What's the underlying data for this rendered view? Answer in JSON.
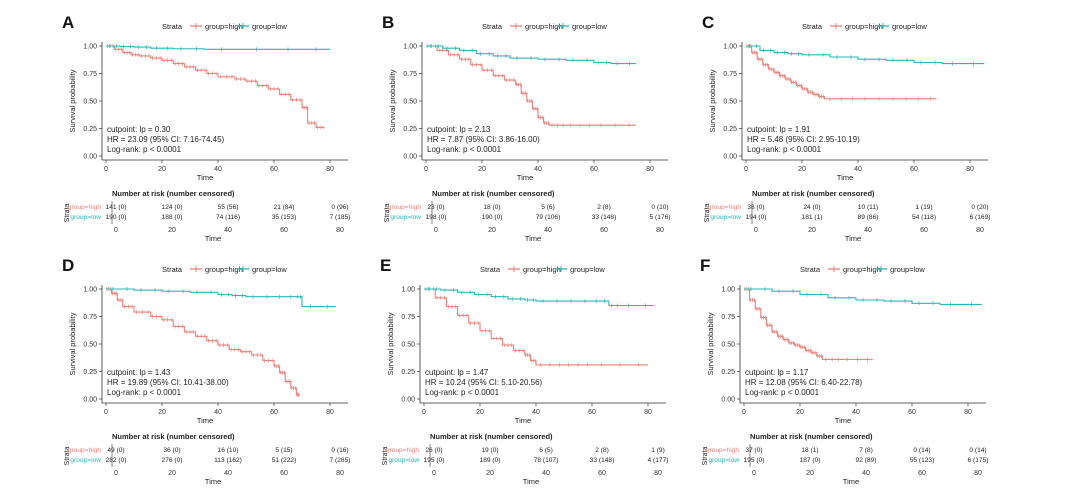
{
  "colors": {
    "high": "#e8827a",
    "low": "#2bb5b8",
    "axis": "#333333",
    "text": "#222222"
  },
  "legend": {
    "title": "Strata",
    "high_label": "group=high",
    "low_label": "group=low"
  },
  "risk_table": {
    "title": "Number at risk (number censored)",
    "strata_label": "Strata",
    "row_labels": [
      "group=high",
      "group=low"
    ]
  },
  "chart_data": [
    {
      "type": "line",
      "letter": "A",
      "xlabel": "Time",
      "ylabel": "Survival probability",
      "xlim": [
        0,
        85
      ],
      "ylim": [
        0,
        1
      ],
      "xticks": [
        0,
        20,
        40,
        60,
        80
      ],
      "yticks": [
        "0.00",
        "0.25",
        "0.50",
        "0.75",
        "1.00"
      ],
      "annotation": [
        "cutpoint: lp = 0.30",
        "HR = 23.09 (95% CI: 7.16-74.45)",
        "Log-rank: p < 0.0001"
      ],
      "series": [
        {
          "name": "group=high",
          "x": [
            0,
            3,
            6,
            9,
            12,
            16,
            20,
            24,
            28,
            32,
            36,
            40,
            46,
            50,
            54,
            58,
            62,
            66,
            70,
            72,
            75,
            78
          ],
          "y": [
            1.0,
            0.97,
            0.94,
            0.92,
            0.91,
            0.89,
            0.87,
            0.84,
            0.81,
            0.78,
            0.75,
            0.72,
            0.7,
            0.68,
            0.64,
            0.61,
            0.56,
            0.51,
            0.44,
            0.3,
            0.26,
            0.26
          ]
        },
        {
          "name": "group=low",
          "x": [
            0,
            5,
            10,
            16,
            24,
            35,
            60,
            80
          ],
          "y": [
            1.0,
            0.995,
            0.99,
            0.98,
            0.975,
            0.97,
            0.97,
            0.97
          ]
        }
      ],
      "risk": {
        "times": [
          0,
          20,
          40,
          60,
          80
        ],
        "high": [
          "141 (0)",
          "124 (0)",
          "55 (56)",
          "21 (84)",
          "0 (96)"
        ],
        "low": [
          "190 (0)",
          "188 (0)",
          "74 (116)",
          "35 (153)",
          "7 (185)"
        ]
      }
    },
    {
      "type": "line",
      "letter": "B",
      "xlabel": "Time",
      "ylabel": "Survival probability",
      "xlim": [
        0,
        85
      ],
      "ylim": [
        0,
        1
      ],
      "xticks": [
        0,
        20,
        40,
        60,
        80
      ],
      "yticks": [
        "0.00",
        "0.25",
        "0.50",
        "0.75",
        "1.00"
      ],
      "annotation": [
        "cutpoint: lp = 2.13",
        "HR = 7.87 (95% CI: 3.86-16.00)",
        "Log-rank: p < 0.0001"
      ],
      "series": [
        {
          "name": "group=high",
          "x": [
            0,
            4,
            8,
            12,
            16,
            20,
            24,
            28,
            32,
            34,
            36,
            38,
            40,
            42,
            44,
            50,
            60,
            75
          ],
          "y": [
            1.0,
            0.96,
            0.92,
            0.88,
            0.83,
            0.78,
            0.73,
            0.69,
            0.65,
            0.57,
            0.5,
            0.43,
            0.35,
            0.3,
            0.28,
            0.28,
            0.28,
            0.28
          ]
        },
        {
          "name": "group=low",
          "x": [
            0,
            6,
            12,
            18,
            24,
            30,
            40,
            50,
            60,
            66,
            75
          ],
          "y": [
            1.0,
            0.98,
            0.96,
            0.93,
            0.91,
            0.89,
            0.88,
            0.87,
            0.85,
            0.84,
            0.84
          ]
        }
      ],
      "risk": {
        "times": [
          0,
          20,
          40,
          60,
          80
        ],
        "high": [
          "23 (0)",
          "18 (0)",
          "5 (6)",
          "2 (8)",
          "0 (10)"
        ],
        "low": [
          "198 (0)",
          "190 (0)",
          "79 (106)",
          "33 (148)",
          "5 (176)"
        ]
      }
    },
    {
      "type": "line",
      "letter": "C",
      "xlabel": "Time",
      "ylabel": "Survival probability",
      "xlim": [
        0,
        85
      ],
      "ylim": [
        0,
        1
      ],
      "xticks": [
        0,
        20,
        40,
        60,
        80
      ],
      "yticks": [
        "0.00",
        "0.25",
        "0.50",
        "0.75",
        "1.00"
      ],
      "annotation": [
        "cutpoint: lp = 1.91",
        "HR = 5.48 (95% CI: 2.95-10.19)",
        "Log-rank: p < 0.0001"
      ],
      "series": [
        {
          "name": "group=high",
          "x": [
            0,
            2,
            4,
            6,
            8,
            10,
            12,
            14,
            16,
            18,
            20,
            22,
            24,
            26,
            28,
            40,
            55,
            68
          ],
          "y": [
            1.0,
            0.94,
            0.88,
            0.83,
            0.79,
            0.76,
            0.73,
            0.7,
            0.67,
            0.64,
            0.61,
            0.58,
            0.56,
            0.54,
            0.52,
            0.52,
            0.52,
            0.52
          ]
        },
        {
          "name": "group=low",
          "x": [
            0,
            5,
            10,
            15,
            20,
            30,
            40,
            50,
            60,
            70,
            85
          ],
          "y": [
            1.0,
            0.96,
            0.94,
            0.93,
            0.92,
            0.9,
            0.88,
            0.87,
            0.85,
            0.84,
            0.84
          ]
        }
      ],
      "risk": {
        "times": [
          0,
          20,
          40,
          60,
          80
        ],
        "high": [
          "38 (0)",
          "24 (0)",
          "10 (11)",
          "1 (19)",
          "0 (20)"
        ],
        "low": [
          "194 (0)",
          "181 (1)",
          "89 (86)",
          "54 (118)",
          "6 (169)"
        ]
      }
    },
    {
      "type": "line",
      "letter": "D",
      "xlabel": "Time",
      "ylabel": "Survival probability",
      "xlim": [
        0,
        85
      ],
      "ylim": [
        0,
        1
      ],
      "xticks": [
        0,
        20,
        40,
        60,
        80
      ],
      "yticks": [
        "0.00",
        "0.25",
        "0.50",
        "0.75",
        "1.00"
      ],
      "annotation": [
        "cutpoint: lp = 1.43",
        "HR = 19.89 (95% CI: 10.41-38.00)",
        "Log-rank: p < 0.0001"
      ],
      "series": [
        {
          "name": "group=high",
          "x": [
            0,
            2,
            4,
            6,
            10,
            16,
            20,
            24,
            28,
            32,
            36,
            40,
            44,
            48,
            52,
            56,
            60,
            62,
            64,
            66,
            68,
            69
          ],
          "y": [
            1.0,
            0.96,
            0.9,
            0.84,
            0.79,
            0.75,
            0.72,
            0.66,
            0.61,
            0.57,
            0.53,
            0.49,
            0.45,
            0.43,
            0.4,
            0.35,
            0.3,
            0.24,
            0.16,
            0.1,
            0.04,
            0.02
          ]
        },
        {
          "name": "group=low",
          "x": [
            0,
            10,
            20,
            30,
            40,
            45,
            50,
            60,
            68,
            70,
            82
          ],
          "y": [
            1.0,
            0.99,
            0.98,
            0.97,
            0.95,
            0.94,
            0.93,
            0.93,
            0.93,
            0.84,
            0.84
          ]
        }
      ],
      "risk": {
        "times": [
          0,
          20,
          40,
          60,
          80
        ],
        "high": [
          "49 (0)",
          "36 (0)",
          "16 (10)",
          "5 (15)",
          "0 (16)"
        ],
        "low": [
          "282 (0)",
          "276 (0)",
          "113 (162)",
          "51 (222)",
          "7 (265)"
        ]
      }
    },
    {
      "type": "line",
      "letter": "E",
      "xlabel": "Time",
      "ylabel": "Survival probability",
      "xlim": [
        0,
        85
      ],
      "ylim": [
        0,
        1
      ],
      "xticks": [
        0,
        20,
        40,
        60,
        80
      ],
      "yticks": [
        "0.00",
        "0.25",
        "0.50",
        "0.75",
        "1.00"
      ],
      "annotation": [
        "cutpoint: lp = 1.47",
        "HR = 10.24 (95% CI: 5.10-20.56)",
        "Log-rank: p < 0.0001"
      ],
      "series": [
        {
          "name": "group=high",
          "x": [
            0,
            4,
            8,
            12,
            16,
            20,
            24,
            28,
            32,
            36,
            38,
            40,
            50,
            60,
            80
          ],
          "y": [
            1.0,
            0.92,
            0.84,
            0.76,
            0.69,
            0.62,
            0.55,
            0.49,
            0.44,
            0.4,
            0.35,
            0.31,
            0.31,
            0.31,
            0.31
          ]
        },
        {
          "name": "group=low",
          "x": [
            0,
            6,
            12,
            18,
            24,
            30,
            36,
            40,
            50,
            60,
            66,
            70,
            82
          ],
          "y": [
            1.0,
            0.99,
            0.97,
            0.95,
            0.93,
            0.91,
            0.9,
            0.89,
            0.89,
            0.89,
            0.85,
            0.85,
            0.85
          ]
        }
      ],
      "risk": {
        "times": [
          0,
          20,
          40,
          60,
          80
        ],
        "high": [
          "26 (0)",
          "19 (0)",
          "6 (5)",
          "2 (8)",
          "1 (9)"
        ],
        "low": [
          "195 (0)",
          "189 (0)",
          "78 (107)",
          "33 (148)",
          "4 (177)"
        ]
      }
    },
    {
      "type": "line",
      "letter": "F",
      "xlabel": "Time",
      "ylabel": "Survival probability",
      "xlim": [
        0,
        85
      ],
      "ylim": [
        0,
        1
      ],
      "xticks": [
        0,
        20,
        40,
        60,
        80
      ],
      "yticks": [
        "0.00",
        "0.25",
        "0.50",
        "0.75",
        "1.00"
      ],
      "annotation": [
        "cutpoint: lp = 1.17",
        "HR = 12.08 (95% CI: 6.40-22.78)",
        "Log-rank: p < 0.0001"
      ],
      "series": [
        {
          "name": "group=high",
          "x": [
            0,
            2,
            4,
            6,
            8,
            10,
            12,
            14,
            16,
            18,
            20,
            22,
            24,
            26,
            28,
            35,
            46
          ],
          "y": [
            1.0,
            0.9,
            0.82,
            0.74,
            0.67,
            0.61,
            0.57,
            0.54,
            0.51,
            0.49,
            0.47,
            0.44,
            0.42,
            0.39,
            0.36,
            0.36,
            0.36
          ]
        },
        {
          "name": "group=low",
          "x": [
            0,
            10,
            20,
            30,
            40,
            50,
            60,
            70,
            85
          ],
          "y": [
            1.0,
            0.98,
            0.95,
            0.92,
            0.9,
            0.89,
            0.87,
            0.86,
            0.86
          ]
        }
      ],
      "risk": {
        "times": [
          0,
          20,
          40,
          60,
          80
        ],
        "high": [
          "37 (0)",
          "18 (1)",
          "7 (8)",
          "0 (14)",
          "0 (14)"
        ],
        "low": [
          "195 (0)",
          "187 (0)",
          "92 (89)",
          "55 (123)",
          "6 (175)"
        ]
      }
    }
  ]
}
